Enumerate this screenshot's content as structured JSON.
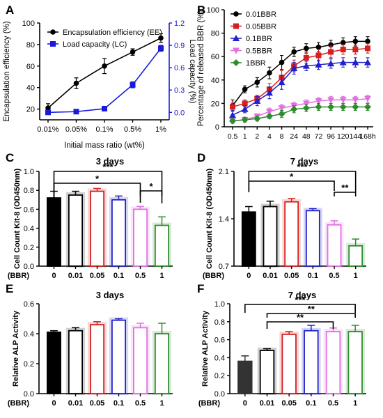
{
  "colors": {
    "black": "#000000",
    "ee": "#000000",
    "lc": "#1a1adc",
    "red": "#d32020",
    "blue": "#2020cc",
    "violet": "#e070e0",
    "green": "#2e8b2e",
    "gray": "#333333",
    "fill_light": "#ffffff"
  },
  "chart_data": [
    {
      "panel": "A",
      "type": "line",
      "title": "",
      "xlabel": "Initial mass ratio (wt%)",
      "ylabel": "Encapsulation efficiency (%)",
      "ylabel_right": "Load capacity (%)",
      "categories": [
        "0.01%",
        "0.05%",
        "0.1%",
        "0.5%",
        "1%"
      ],
      "ylim": [
        10,
        100
      ],
      "yticks": [
        20,
        40,
        60,
        80,
        100
      ],
      "ylim_right": [
        -0.1,
        1.2
      ],
      "yticks_right": [
        0.0,
        0.3,
        0.6,
        0.9,
        1.2
      ],
      "legend_position": "top-left",
      "series": [
        {
          "name": "Encapsulation efficiency (EE)",
          "axis": "left",
          "color_key": "ee",
          "marker": "circle",
          "values": [
            21,
            44,
            60,
            73,
            86
          ],
          "errors": [
            4,
            5,
            7,
            3,
            4
          ]
        },
        {
          "name": "Load capacity (LC)",
          "axis": "right",
          "color_key": "lc",
          "marker": "square",
          "values": [
            0.0,
            0.01,
            0.05,
            0.37,
            0.86
          ],
          "errors": [
            0.02,
            0.02,
            0.02,
            0.04,
            0.04
          ]
        }
      ]
    },
    {
      "panel": "B",
      "type": "line",
      "title": "",
      "xlabel": "",
      "ylabel": "Percentage of released BBR (%)",
      "categories": [
        "0.5",
        "1",
        "2",
        "4",
        "8",
        "24",
        "48",
        "72",
        "96",
        "120",
        "144",
        "168h"
      ],
      "ylim": [
        0,
        100
      ],
      "yticks": [
        0,
        20,
        40,
        60,
        80,
        100
      ],
      "legend_position": "top-left",
      "series": [
        {
          "name": "0.01BBR",
          "color_key": "black",
          "marker": "circle",
          "values": [
            18,
            32,
            38,
            46,
            55,
            64,
            67,
            68,
            70,
            72,
            73,
            73
          ],
          "errors": [
            5,
            3,
            4,
            5,
            6,
            4,
            4,
            4,
            4,
            4,
            4,
            4
          ]
        },
        {
          "name": "0.05BBR",
          "color_key": "red",
          "marker": "square",
          "values": [
            17,
            20,
            24,
            32,
            42,
            52,
            59,
            61,
            64,
            66,
            66,
            67
          ],
          "errors": [
            4,
            3,
            3,
            5,
            6,
            5,
            5,
            5,
            5,
            4,
            4,
            4
          ]
        },
        {
          "name": "0.1BBR",
          "color_key": "blue",
          "marker": "triangle",
          "values": [
            10,
            15,
            22,
            29,
            38,
            50,
            52,
            53,
            54,
            55,
            55,
            55
          ],
          "errors": [
            4,
            3,
            4,
            5,
            6,
            5,
            4,
            4,
            4,
            4,
            4,
            4
          ]
        },
        {
          "name": "0.5BBR",
          "color_key": "violet",
          "marker": "triangle-down",
          "values": [
            5,
            6,
            9,
            13,
            16,
            18,
            20,
            22,
            23,
            23,
            23,
            24
          ],
          "errors": [
            2,
            2,
            2,
            3,
            3,
            3,
            3,
            3,
            3,
            3,
            3,
            3
          ]
        },
        {
          "name": "1BBR",
          "color_key": "green",
          "marker": "diamond",
          "values": [
            5,
            6,
            7,
            9,
            11,
            15,
            16,
            17,
            17,
            17,
            17,
            17
          ],
          "errors": [
            2,
            2,
            2,
            2,
            3,
            3,
            3,
            3,
            3,
            3,
            3,
            3
          ]
        }
      ]
    },
    {
      "panel": "C",
      "type": "bar",
      "title": "3 days",
      "xlabel": "(BBR)",
      "ylabel": "Cell Count Kit-8 (OD450nm)",
      "categories": [
        "0",
        "0.01",
        "0.05",
        "0.1",
        "0.5",
        "1"
      ],
      "values": [
        0.72,
        0.75,
        0.79,
        0.7,
        0.6,
        0.43
      ],
      "errors": [
        0.07,
        0.04,
        0.03,
        0.04,
        0.03,
        0.09
      ],
      "ylim": [
        0,
        1.0
      ],
      "yticks": [
        0.0,
        0.2,
        0.4,
        0.6,
        0.8,
        1.0
      ],
      "bar_colors": [
        "black",
        "black",
        "red",
        "blue",
        "violet",
        "green"
      ],
      "filled": [
        true,
        false,
        false,
        false,
        false,
        false
      ],
      "significance": [
        {
          "from": "0",
          "to": "1",
          "label": "***"
        },
        {
          "from": "0",
          "to": "0.5",
          "label": "*"
        },
        {
          "from": "0.5",
          "to": "1",
          "label": "*"
        }
      ]
    },
    {
      "panel": "D",
      "type": "bar",
      "title": "7 days",
      "xlabel": "(BBR)",
      "ylabel": "Cell Count Kit-8 (OD450nm)",
      "categories": [
        "0",
        "0.01",
        "0.05",
        "0.1",
        "0.5",
        "1"
      ],
      "values": [
        1.5,
        1.58,
        1.65,
        1.52,
        1.31,
        1.0
      ],
      "errors": [
        0.08,
        0.08,
        0.05,
        0.03,
        0.06,
        0.1
      ],
      "ylim": [
        0.7,
        2.1
      ],
      "yticks": [
        0.7,
        1.4,
        2.1
      ],
      "bar_colors": [
        "black",
        "black",
        "red",
        "blue",
        "violet",
        "green"
      ],
      "filled": [
        true,
        false,
        false,
        false,
        false,
        false
      ],
      "significance": [
        {
          "from": "0",
          "to": "1",
          "label": "***"
        },
        {
          "from": "0",
          "to": "0.5",
          "label": "*"
        },
        {
          "from": "0.5",
          "to": "1",
          "label": "**"
        }
      ]
    },
    {
      "panel": "E",
      "type": "bar",
      "title": "3 days",
      "xlabel": "(BBR)",
      "ylabel": "Relative ALP Activity",
      "categories": [
        "0",
        "0.01",
        "0.05",
        "0.1",
        "0.5",
        "1"
      ],
      "values": [
        0.41,
        0.42,
        0.46,
        0.49,
        0.44,
        0.4
      ],
      "errors": [
        0.01,
        0.02,
        0.02,
        0.01,
        0.03,
        0.07
      ],
      "ylim": [
        0,
        0.6
      ],
      "yticks": [
        0.0,
        0.2,
        0.4,
        0.6
      ],
      "bar_colors": [
        "black",
        "black",
        "red",
        "blue",
        "violet",
        "green"
      ],
      "filled": [
        true,
        false,
        false,
        false,
        false,
        false
      ],
      "significance": []
    },
    {
      "panel": "F",
      "type": "bar",
      "title": "7 days",
      "xlabel": "(BBR)",
      "ylabel": "Relative ALP Activity",
      "categories": [
        "0",
        "0.01",
        "0.05",
        "0.1",
        "0.5",
        "1"
      ],
      "values": [
        0.36,
        0.48,
        0.66,
        0.7,
        0.69,
        0.69
      ],
      "errors": [
        0.06,
        0.02,
        0.03,
        0.06,
        0.04,
        0.07
      ],
      "ylim": [
        0,
        1.0
      ],
      "yticks": [
        0.0,
        0.2,
        0.4,
        0.6,
        0.8,
        1.0
      ],
      "bar_colors": [
        "gray",
        "black",
        "red",
        "blue",
        "violet",
        "green"
      ],
      "filled": [
        true,
        false,
        false,
        false,
        false,
        false
      ],
      "significance": [
        {
          "from": "0",
          "to": "1",
          "label": "***"
        },
        {
          "from": "0.01",
          "to": "1",
          "label": "**"
        },
        {
          "from": "0.01",
          "to": "0.5",
          "label": "**"
        }
      ]
    }
  ]
}
